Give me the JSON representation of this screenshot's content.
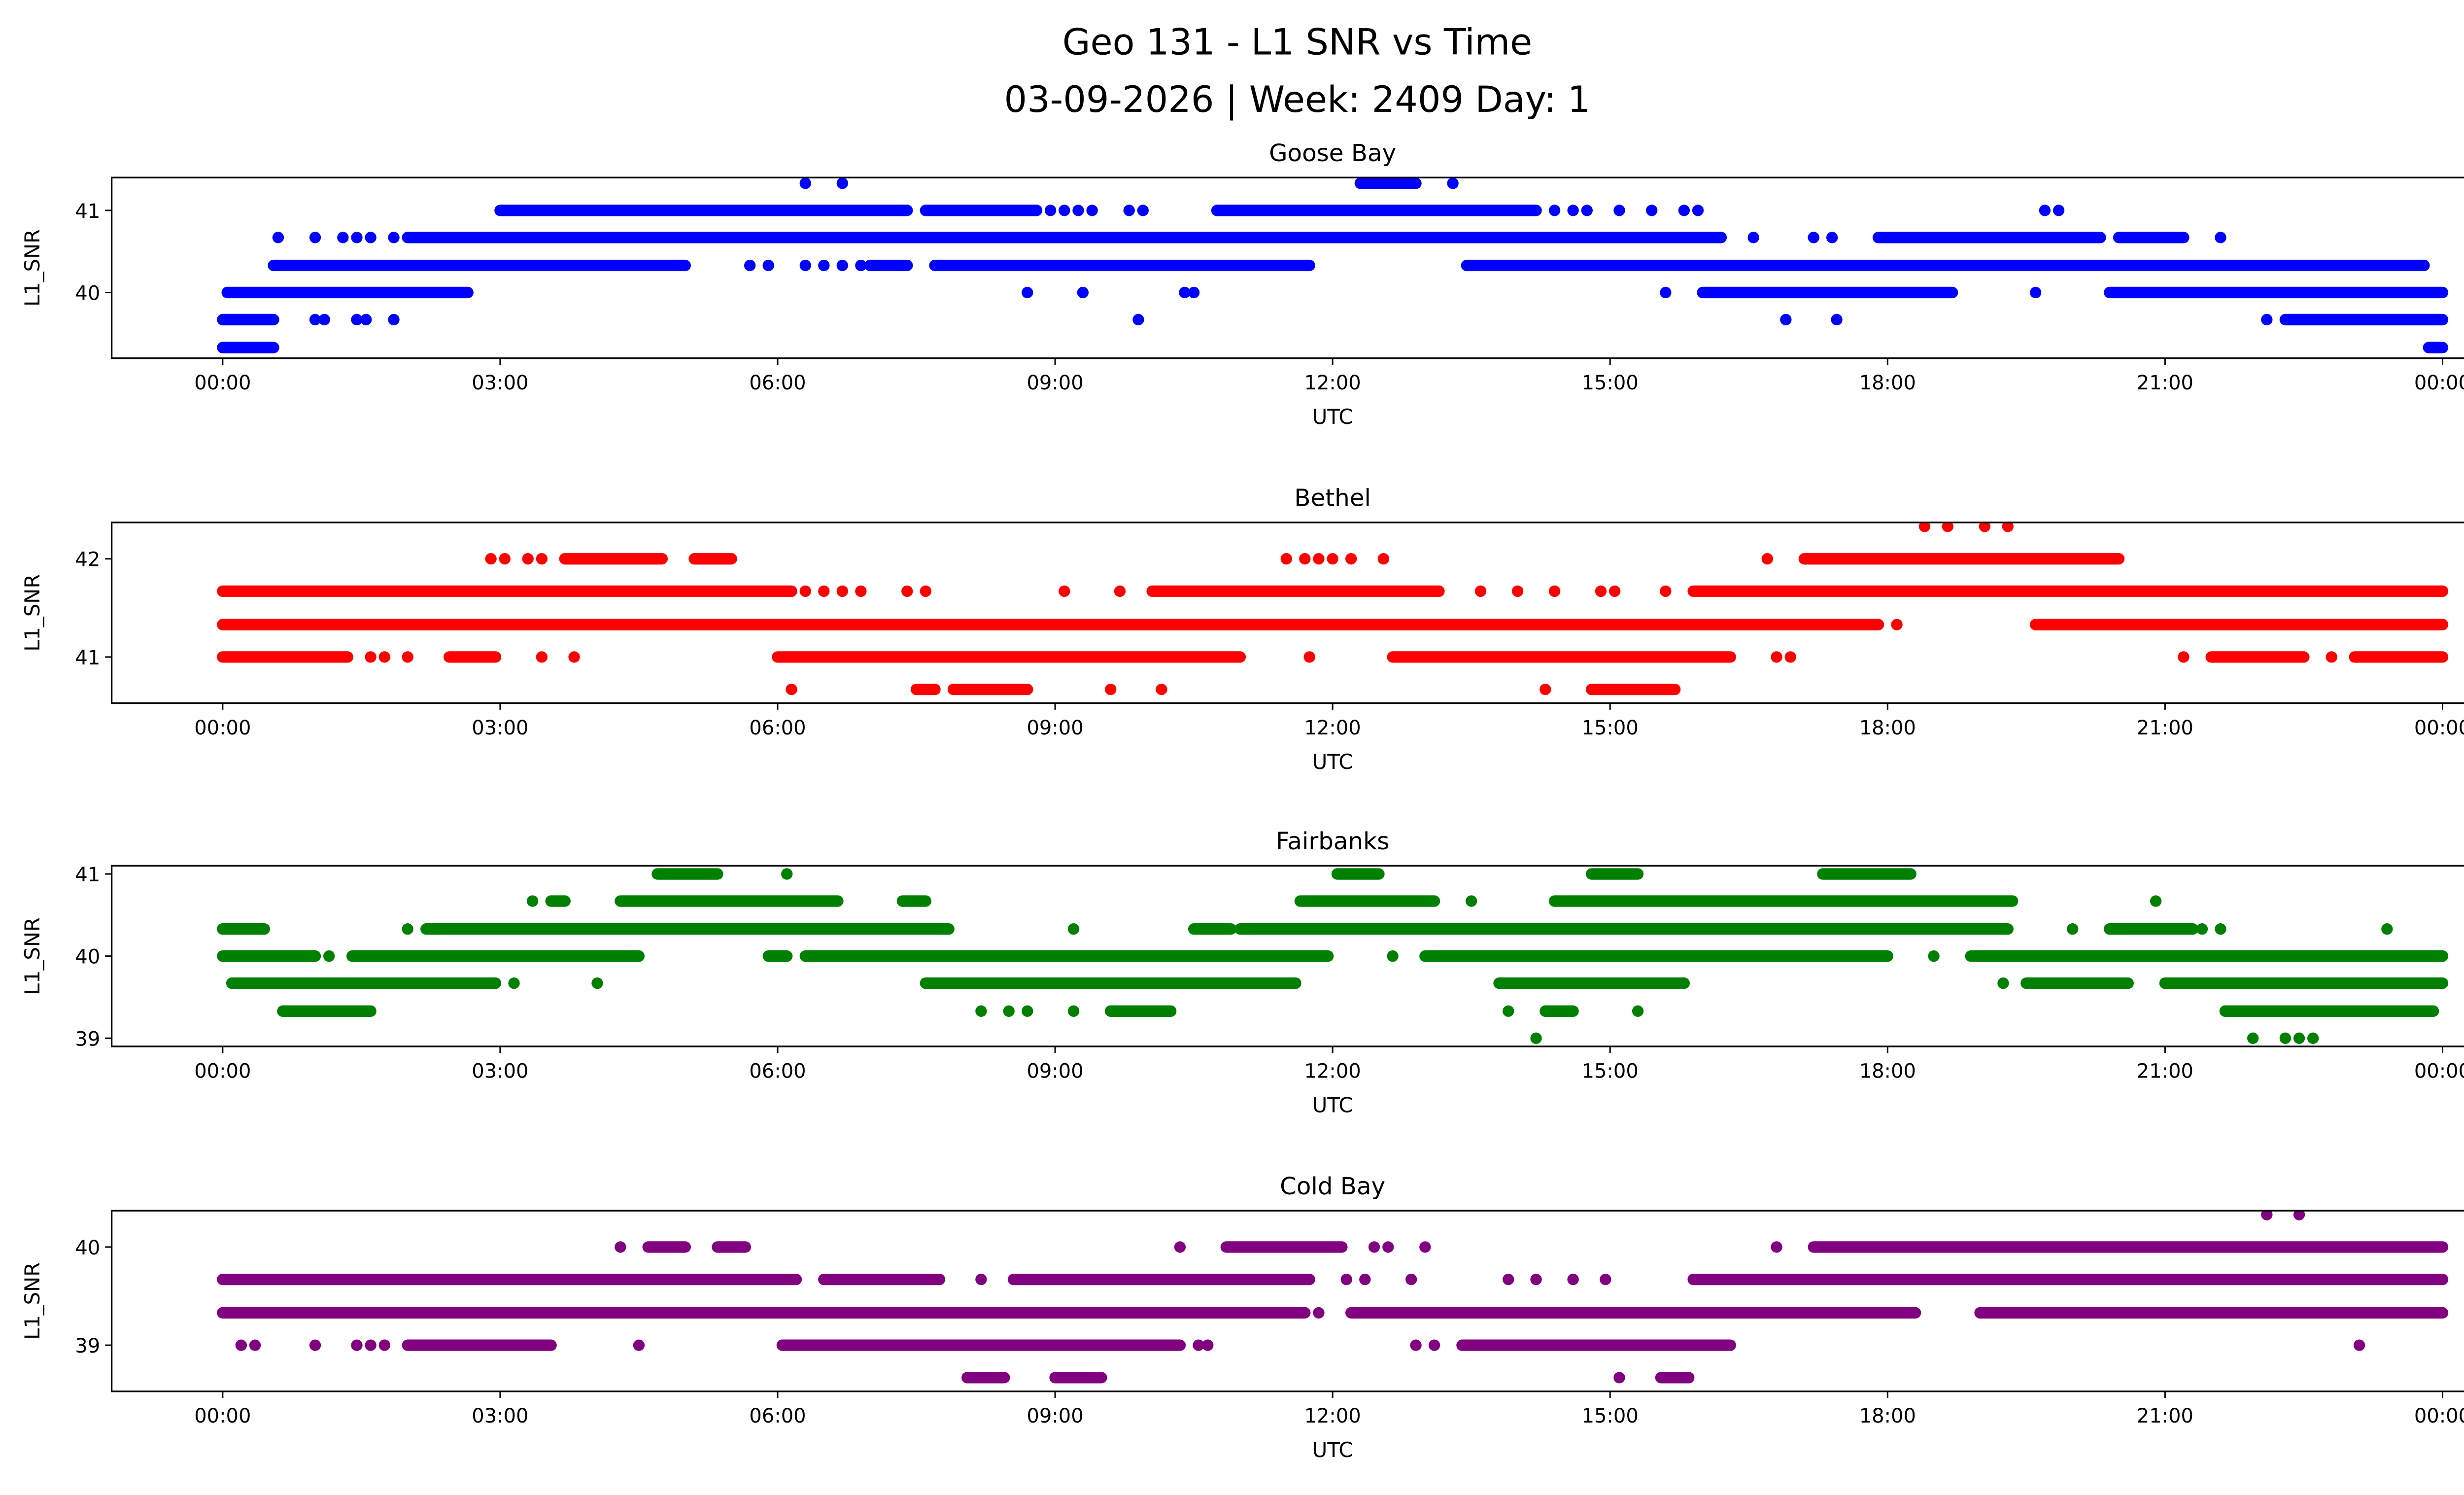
{
  "chart_data": {
    "type": "scatter",
    "title": "Geo 131 - L1 SNR vs Time",
    "subtitle": "03-09-2026 | Week: 2409 Day: 1",
    "xlabel": "UTC",
    "ylabel": "L1_SNR",
    "xlim_hours": [
      -1.2,
      25.2
    ],
    "xticks": [
      0,
      3,
      6,
      9,
      12,
      15,
      18,
      21,
      24
    ],
    "xtick_labels": [
      "00:00",
      "03:00",
      "06:00",
      "09:00",
      "12:00",
      "15:00",
      "18:00",
      "21:00",
      "00:00"
    ],
    "note": "runs = [L1_SNR, start_hour, end_hour] of dense samples; points = [L1_SNR, hour]",
    "panels": [
      {
        "name": "Goose Bay",
        "color": "#0000ff",
        "ylim": [
          39.2,
          41.4
        ],
        "yticks": [
          40,
          41
        ],
        "ytick_labels": [
          "40",
          "41"
        ],
        "runs": [
          [
            39.33,
            0,
            0.55
          ],
          [
            39.33,
            23.85,
            24
          ],
          [
            39.67,
            0,
            0.55
          ],
          [
            39.67,
            22.3,
            24
          ],
          [
            40,
            0.05,
            2.65
          ],
          [
            40,
            16,
            18.7
          ],
          [
            40,
            20.4,
            24
          ],
          [
            40.33,
            0.55,
            5
          ],
          [
            40.33,
            7,
            7.4
          ],
          [
            40.33,
            7.7,
            11.75
          ],
          [
            40.33,
            13.45,
            23.8
          ],
          [
            40.67,
            2,
            16.2
          ],
          [
            40.67,
            17.9,
            20.3
          ],
          [
            40.67,
            20.5,
            21.2
          ],
          [
            41,
            3,
            7.4
          ],
          [
            41,
            7.6,
            8.8
          ],
          [
            41,
            10.75,
            14.2
          ],
          [
            41.33,
            12.3,
            12.9
          ]
        ],
        "points": [
          [
            39.67,
            1
          ],
          [
            39.67,
            1.1
          ],
          [
            39.67,
            1.45
          ],
          [
            39.67,
            1.55
          ],
          [
            39.67,
            1.85
          ],
          [
            39.67,
            9.9
          ],
          [
            39.67,
            16.9
          ],
          [
            39.67,
            17.45
          ],
          [
            39.67,
            22.1
          ],
          [
            40,
            8.7
          ],
          [
            40,
            9.3
          ],
          [
            40,
            10.4
          ],
          [
            40,
            10.5
          ],
          [
            40,
            15.6
          ],
          [
            40,
            19.6
          ],
          [
            40.33,
            5.7
          ],
          [
            40.33,
            5.9
          ],
          [
            40.33,
            6.3
          ],
          [
            40.33,
            6.5
          ],
          [
            40.33,
            6.7
          ],
          [
            40.33,
            6.9
          ],
          [
            40.67,
            0.6
          ],
          [
            40.67,
            1
          ],
          [
            40.67,
            1.3
          ],
          [
            40.67,
            1.45
          ],
          [
            40.67,
            1.6
          ],
          [
            40.67,
            1.85
          ],
          [
            40.67,
            16.55
          ],
          [
            40.67,
            17.2
          ],
          [
            40.67,
            17.4
          ],
          [
            40.67,
            21.6
          ],
          [
            41,
            8.95
          ],
          [
            41,
            9.1
          ],
          [
            41,
            9.25
          ],
          [
            41,
            9.4
          ],
          [
            41,
            9.8
          ],
          [
            41,
            9.95
          ],
          [
            41,
            14.4
          ],
          [
            41,
            14.6
          ],
          [
            41,
            14.75
          ],
          [
            41,
            15.1
          ],
          [
            41,
            15.45
          ],
          [
            41,
            15.8
          ],
          [
            41,
            15.95
          ],
          [
            41,
            19.7
          ],
          [
            41,
            19.85
          ],
          [
            41.33,
            6.3
          ],
          [
            41.33,
            6.7
          ],
          [
            41.33,
            13.3
          ]
        ]
      },
      {
        "name": "Bethel",
        "color": "#ff0000",
        "ylim": [
          40.53,
          42.37
        ],
        "yticks": [
          41,
          42
        ],
        "ytick_labels": [
          "41",
          "42"
        ],
        "runs": [
          [
            40.67,
            7.5,
            7.7
          ],
          [
            40.67,
            7.9,
            8.7
          ],
          [
            40.67,
            14.8,
            15.7
          ],
          [
            41,
            0,
            1.35
          ],
          [
            41,
            2.45,
            2.95
          ],
          [
            41,
            6,
            11
          ],
          [
            41,
            12.65,
            16.3
          ],
          [
            41,
            21.5,
            22.5
          ],
          [
            41,
            23.05,
            24
          ],
          [
            41.33,
            0,
            17.9
          ],
          [
            41.33,
            19.6,
            24
          ],
          [
            41.67,
            0,
            6.15
          ],
          [
            41.67,
            10.05,
            13.15
          ],
          [
            41.67,
            15.9,
            24
          ],
          [
            42,
            3.7,
            4.75
          ],
          [
            42,
            5.1,
            5.5
          ],
          [
            42,
            17.1,
            20.5
          ]
        ],
        "points": [
          [
            40.67,
            6.15
          ],
          [
            40.67,
            9.6
          ],
          [
            40.67,
            10.15
          ],
          [
            40.67,
            14.3
          ],
          [
            41,
            1.6
          ],
          [
            41,
            1.75
          ],
          [
            41,
            2
          ],
          [
            41,
            3.45
          ],
          [
            41,
            3.8
          ],
          [
            41,
            11.75
          ],
          [
            41,
            16.8
          ],
          [
            41,
            16.95
          ],
          [
            41,
            21.2
          ],
          [
            41,
            22.8
          ],
          [
            41.33,
            18.1
          ],
          [
            41.67,
            6.3
          ],
          [
            41.67,
            6.5
          ],
          [
            41.67,
            6.7
          ],
          [
            41.67,
            6.9
          ],
          [
            41.67,
            7.4
          ],
          [
            41.67,
            7.6
          ],
          [
            41.67,
            9.1
          ],
          [
            41.67,
            9.7
          ],
          [
            41.67,
            13.6
          ],
          [
            41.67,
            14
          ],
          [
            41.67,
            14.4
          ],
          [
            41.67,
            14.9
          ],
          [
            41.67,
            15.05
          ],
          [
            41.67,
            15.6
          ],
          [
            42,
            2.9
          ],
          [
            42,
            3.05
          ],
          [
            42,
            3.3
          ],
          [
            42,
            3.45
          ],
          [
            42,
            11.5
          ],
          [
            42,
            11.7
          ],
          [
            42,
            11.85
          ],
          [
            42,
            12
          ],
          [
            42,
            12.2
          ],
          [
            42,
            12.55
          ],
          [
            42,
            16.7
          ],
          [
            42.33,
            18.4
          ],
          [
            42.33,
            18.65
          ],
          [
            42.33,
            19.05
          ],
          [
            42.33,
            19.3
          ]
        ]
      },
      {
        "name": "Fairbanks",
        "color": "#008000",
        "ylim": [
          38.9,
          41.1
        ],
        "yticks": [
          39,
          40,
          41
        ],
        "ytick_labels": [
          "39",
          "40",
          "41"
        ],
        "runs": [
          [
            39.33,
            0.65,
            1.6
          ],
          [
            39.33,
            9.6,
            10.25
          ],
          [
            39.33,
            14.3,
            14.6
          ],
          [
            39.33,
            21.65,
            23.9
          ],
          [
            39.67,
            0.1,
            2.95
          ],
          [
            39.67,
            7.6,
            11.6
          ],
          [
            39.67,
            13.8,
            15.8
          ],
          [
            39.67,
            19.5,
            20.6
          ],
          [
            39.67,
            21,
            24
          ],
          [
            40,
            0,
            1
          ],
          [
            40,
            1.4,
            4.5
          ],
          [
            40,
            5.9,
            6.1
          ],
          [
            40,
            6.3,
            11.95
          ],
          [
            40,
            13,
            18
          ],
          [
            40,
            18.9,
            24
          ],
          [
            40.33,
            0,
            0.45
          ],
          [
            40.33,
            2.2,
            7.85
          ],
          [
            40.33,
            10.5,
            10.9
          ],
          [
            40.33,
            11,
            19.3
          ],
          [
            40.33,
            20.4,
            21.3
          ],
          [
            40.67,
            3.55,
            3.7
          ],
          [
            40.67,
            4.3,
            6.65
          ],
          [
            40.67,
            7.35,
            7.6
          ],
          [
            40.67,
            11.65,
            13.1
          ],
          [
            40.67,
            14.4,
            19.35
          ],
          [
            41,
            4.7,
            5.35
          ],
          [
            41,
            12.05,
            12.5
          ],
          [
            41,
            14.8,
            15.3
          ],
          [
            41,
            17.3,
            18.25
          ]
        ],
        "points": [
          [
            39,
            14.2
          ],
          [
            39,
            21.95
          ],
          [
            39,
            22.3
          ],
          [
            39,
            22.45
          ],
          [
            39,
            22.6
          ],
          [
            39.33,
            8.2
          ],
          [
            39.33,
            8.5
          ],
          [
            39.33,
            8.7
          ],
          [
            39.33,
            9.2
          ],
          [
            39.33,
            13.9
          ],
          [
            39.33,
            15.3
          ],
          [
            39.67,
            3.15
          ],
          [
            39.67,
            4.05
          ],
          [
            39.67,
            19.25
          ],
          [
            40,
            1.15
          ],
          [
            40,
            12.65
          ],
          [
            40,
            18.5
          ],
          [
            40.33,
            2
          ],
          [
            40.33,
            9.2
          ],
          [
            40.33,
            20
          ],
          [
            40.33,
            21.4
          ],
          [
            40.33,
            21.6
          ],
          [
            40.33,
            23.4
          ],
          [
            40.67,
            3.35
          ],
          [
            40.67,
            13.5
          ],
          [
            40.67,
            20.9
          ],
          [
            41,
            6.1
          ]
        ]
      },
      {
        "name": "Cold Bay",
        "color": "#800080",
        "ylim": [
          38.53,
          40.37
        ],
        "yticks": [
          39,
          40
        ],
        "ytick_labels": [
          "39",
          "40"
        ],
        "runs": [
          [
            38.67,
            8.05,
            8.45
          ],
          [
            38.67,
            9,
            9.5
          ],
          [
            38.67,
            15.55,
            15.85
          ],
          [
            39,
            2,
            3.55
          ],
          [
            39,
            6.05,
            10.35
          ],
          [
            39,
            13.4,
            16.3
          ],
          [
            39.33,
            0,
            11.7
          ],
          [
            39.33,
            12.2,
            18.3
          ],
          [
            39.33,
            19,
            24
          ],
          [
            39.67,
            0,
            6.2
          ],
          [
            39.67,
            6.5,
            7.75
          ],
          [
            39.67,
            8.55,
            11.75
          ],
          [
            39.67,
            15.9,
            24
          ],
          [
            40,
            4.6,
            5
          ],
          [
            40,
            5.35,
            5.65
          ],
          [
            40,
            10.85,
            12.1
          ],
          [
            40,
            17.2,
            24
          ]
        ],
        "points": [
          [
            38.67,
            15.1
          ],
          [
            39,
            0.2
          ],
          [
            39,
            0.35
          ],
          [
            39,
            1
          ],
          [
            39,
            1.45
          ],
          [
            39,
            1.6
          ],
          [
            39,
            1.75
          ],
          [
            39,
            4.5
          ],
          [
            39,
            10.55
          ],
          [
            39,
            10.65
          ],
          [
            39,
            12.9
          ],
          [
            39,
            13.1
          ],
          [
            39,
            23.1
          ],
          [
            39.33,
            11.85
          ],
          [
            39.67,
            8.2
          ],
          [
            39.67,
            12.15
          ],
          [
            39.67,
            12.35
          ],
          [
            39.67,
            12.85
          ],
          [
            39.67,
            13.9
          ],
          [
            39.67,
            14.2
          ],
          [
            39.67,
            14.6
          ],
          [
            39.67,
            14.95
          ],
          [
            40,
            4.3
          ],
          [
            40,
            10.35
          ],
          [
            40,
            12.45
          ],
          [
            40,
            12.6
          ],
          [
            40,
            13
          ],
          [
            40,
            16.8
          ],
          [
            40.33,
            22.1
          ],
          [
            40.33,
            22.45
          ]
        ]
      }
    ]
  }
}
